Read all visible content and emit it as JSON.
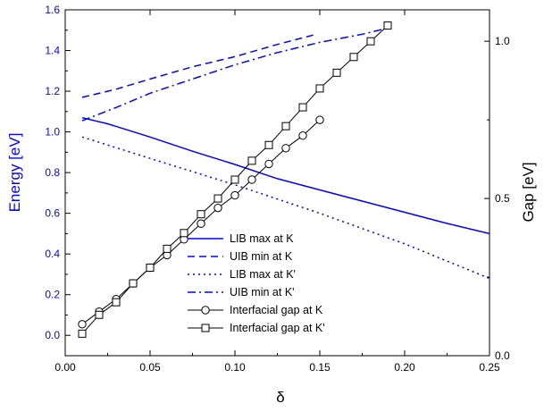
{
  "chart_data": {
    "type": "line",
    "xlabel": "δ",
    "ylabel_left": "Energy [eV]",
    "ylabel_right": "Gap [eV]",
    "xlim": [
      0.0,
      0.25
    ],
    "ylim_left": [
      -0.1,
      1.6
    ],
    "ylim_right": [
      0.0,
      1.1
    ],
    "x_ticks": [
      "0.00",
      "0.05",
      "0.10",
      "0.15",
      "0.20",
      "0.25"
    ],
    "y_left_ticks": [
      "0.0",
      "0.2",
      "0.4",
      "0.6",
      "0.8",
      "1.0",
      "1.2",
      "1.4",
      "1.6"
    ],
    "y_right_ticks": [
      "0.0",
      "0.5",
      "1.0"
    ],
    "grid": false,
    "legend_position": "lower-center",
    "colors": {
      "blue": "#0000ff",
      "black": "#000000"
    },
    "series": [
      {
        "name": "LIB max at K",
        "axis": "left",
        "color": "#0000ff",
        "style": "solid",
        "marker": "none",
        "x": [
          0.01,
          0.025,
          0.05,
          0.075,
          0.1,
          0.125,
          0.15,
          0.175,
          0.2,
          0.225,
          0.25
        ],
        "y": [
          1.07,
          1.04,
          0.975,
          0.905,
          0.84,
          0.77,
          0.715,
          0.66,
          0.605,
          0.55,
          0.5
        ]
      },
      {
        "name": "UIB min at K",
        "axis": "left",
        "color": "#0000ff",
        "style": "dashed",
        "marker": "none",
        "x": [
          0.01,
          0.03,
          0.05,
          0.075,
          0.1,
          0.125,
          0.148
        ],
        "y": [
          1.17,
          1.21,
          1.26,
          1.32,
          1.37,
          1.43,
          1.48
        ]
      },
      {
        "name": "LIB max at K'",
        "axis": "left",
        "color": "#0000ff",
        "style": "dotted",
        "marker": "none",
        "x": [
          0.01,
          0.05,
          0.1,
          0.15,
          0.2,
          0.25
        ],
        "y": [
          0.975,
          0.87,
          0.74,
          0.6,
          0.45,
          0.28
        ]
      },
      {
        "name": "UIB min at K'",
        "axis": "left",
        "color": "#0000ff",
        "style": "dashdot",
        "marker": "none",
        "x": [
          0.01,
          0.03,
          0.05,
          0.075,
          0.1,
          0.125,
          0.15,
          0.175,
          0.19
        ],
        "y": [
          1.055,
          1.12,
          1.19,
          1.26,
          1.33,
          1.39,
          1.44,
          1.48,
          1.51
        ]
      },
      {
        "name": "Interfacial gap at K",
        "axis": "right",
        "color": "#000000",
        "style": "solid",
        "marker": "circle",
        "x": [
          0.01,
          0.02,
          0.03,
          0.04,
          0.05,
          0.06,
          0.07,
          0.08,
          0.09,
          0.1,
          0.11,
          0.12,
          0.13,
          0.14,
          0.15
        ],
        "y": [
          0.1,
          0.14,
          0.18,
          0.23,
          0.28,
          0.32,
          0.37,
          0.42,
          0.47,
          0.51,
          0.56,
          0.61,
          0.66,
          0.7,
          0.75
        ]
      },
      {
        "name": "Interfacial gap at K'",
        "axis": "right",
        "color": "#000000",
        "style": "solid",
        "marker": "square",
        "x": [
          0.01,
          0.02,
          0.03,
          0.04,
          0.05,
          0.06,
          0.07,
          0.08,
          0.09,
          0.1,
          0.11,
          0.12,
          0.13,
          0.14,
          0.15,
          0.16,
          0.17,
          0.18,
          0.19
        ],
        "y": [
          0.07,
          0.13,
          0.17,
          0.23,
          0.28,
          0.34,
          0.39,
          0.45,
          0.5,
          0.56,
          0.62,
          0.67,
          0.73,
          0.79,
          0.85,
          0.9,
          0.95,
          1.0,
          1.05
        ]
      }
    ]
  }
}
